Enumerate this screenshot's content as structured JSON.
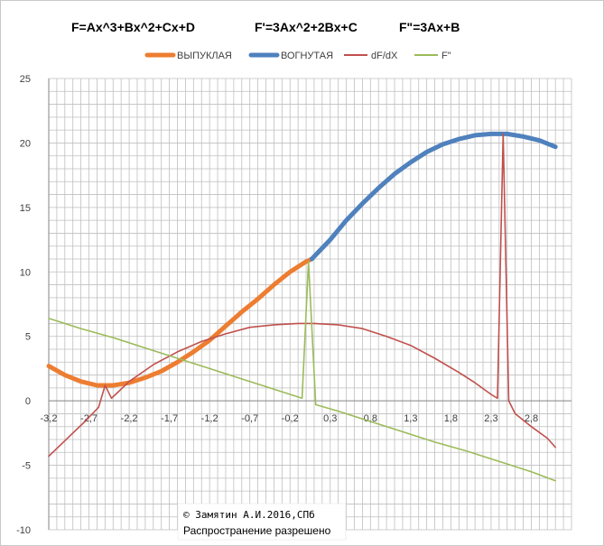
{
  "chart_data": {
    "type": "line",
    "formulas": {
      "f": "F=Ax^3+Bx^2+Cx+D",
      "f1": "F'=3Ax^2+2Bx+C",
      "f2": "F\"=3Ax+B"
    },
    "ylim": [
      -10,
      25
    ],
    "xlim": [
      -3.2,
      3.3
    ],
    "y_ticks": [
      "25",
      "20",
      "15",
      "10",
      "5",
      "0",
      "-5",
      "-10"
    ],
    "y_tick_values": [
      25,
      20,
      15,
      10,
      5,
      0,
      -5,
      -10
    ],
    "x_tick_labels": [
      "-3,2",
      "-2,7",
      "-2,2",
      "-1,7",
      "-1,2",
      "-0,7",
      "-0,2",
      "0,3",
      "0,8",
      "1,3",
      "1,8",
      "2,3",
      "2,8"
    ],
    "x_tick_values": [
      -3.2,
      -2.7,
      -2.2,
      -1.7,
      -1.2,
      -0.7,
      -0.2,
      0.3,
      0.8,
      1.3,
      1.8,
      2.3,
      2.8
    ],
    "grid": true,
    "legend_position": "top",
    "series": [
      {
        "name": "ВЫПУКЛАЯ",
        "color": "#ED7D31",
        "x": [
          -3.2,
          -3.0,
          -2.8,
          -2.6,
          -2.4,
          -2.2,
          -2.0,
          -1.8,
          -1.6,
          -1.4,
          -1.2,
          -1.0,
          -0.8,
          -0.6,
          -0.4,
          -0.2,
          0.0,
          0.07
        ],
        "values": [
          2.7,
          2.0,
          1.5,
          1.2,
          1.2,
          1.4,
          1.8,
          2.3,
          3.0,
          3.8,
          4.7,
          5.8,
          6.9,
          7.9,
          9.0,
          10.0,
          10.8,
          11.0
        ]
      },
      {
        "name": "ВОГНУТАЯ",
        "color": "#4F81BD",
        "x": [
          0.07,
          0.3,
          0.5,
          0.7,
          0.9,
          1.1,
          1.3,
          1.5,
          1.7,
          1.9,
          2.1,
          2.3,
          2.5,
          2.7,
          2.9,
          3.1
        ],
        "values": [
          11.0,
          12.5,
          14.0,
          15.3,
          16.5,
          17.6,
          18.5,
          19.3,
          19.9,
          20.3,
          20.6,
          20.7,
          20.7,
          20.5,
          20.2,
          19.7
        ]
      },
      {
        "name": "dF/dX",
        "color": "#C0504D",
        "x": [
          -3.2,
          -2.95,
          -2.75,
          -2.58,
          -2.5,
          -2.42,
          -2.2,
          -1.9,
          -1.6,
          -1.3,
          -1.0,
          -0.7,
          -0.4,
          -0.1,
          0.1,
          0.4,
          0.7,
          1.0,
          1.3,
          1.6,
          1.9,
          2.1,
          2.3,
          2.38,
          2.45,
          2.52,
          2.6,
          2.8,
          3.0,
          3.1
        ],
        "values": [
          -4.3,
          -2.8,
          -1.6,
          -0.5,
          1.2,
          0.2,
          1.5,
          2.8,
          3.8,
          4.6,
          5.2,
          5.7,
          5.9,
          6.0,
          6.0,
          5.9,
          5.6,
          5.0,
          4.3,
          3.3,
          2.2,
          1.4,
          0.5,
          0.2,
          20.7,
          0.0,
          -1.0,
          -2.0,
          -2.9,
          -3.6
        ]
      },
      {
        "name": "F\"",
        "color": "#9BBB59",
        "x": [
          -3.2,
          -2.8,
          -2.4,
          -2.0,
          -1.6,
          -1.2,
          -0.8,
          -0.4,
          -0.05,
          0.03,
          0.12,
          0.4,
          0.8,
          1.2,
          1.6,
          2.0,
          2.4,
          2.8,
          3.1
        ],
        "values": [
          6.4,
          5.6,
          4.9,
          4.1,
          3.3,
          2.5,
          1.7,
          0.9,
          0.2,
          10.8,
          -0.3,
          -0.8,
          -1.6,
          -2.4,
          -3.2,
          -3.9,
          -4.7,
          -5.5,
          -6.2
        ]
      }
    ],
    "annotations": [
      "© Замятин А.И.2016,СПб",
      "Распространение разрешено"
    ]
  }
}
